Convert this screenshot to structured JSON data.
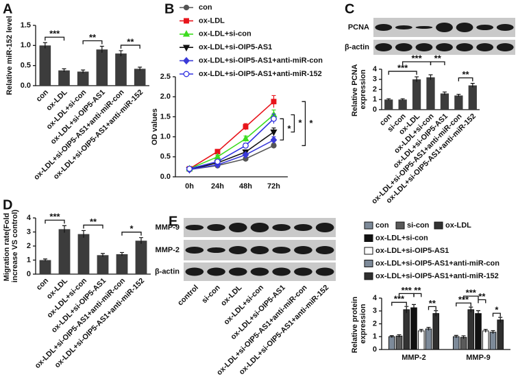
{
  "chart_data": [
    {
      "panel": "A",
      "type": "bar",
      "y_label": "Relative miR-152 level",
      "categories": [
        "con",
        "ox-LDL",
        "ox-LDL+si-con",
        "ox-LDL+si-OIP5-AS1",
        "ox-LDL+si-OIP5-AS1+anti-miR-con",
        "ox-LDL+si-OIP5-AS1+anti-miR-152"
      ],
      "values": [
        1.0,
        0.38,
        0.35,
        0.9,
        0.8,
        0.42
      ],
      "errors": [
        0.07,
        0.04,
        0.04,
        0.08,
        0.07,
        0.04
      ],
      "color": "#3c3c3c",
      "ylim": [
        0,
        1.5
      ],
      "yticks": [
        {
          "value": 0,
          "label": "0.0"
        },
        0.5,
        {
          "value": 1,
          "label": "1.0"
        },
        1.5
      ],
      "brackets": [
        {
          "between": [
            0,
            1
          ],
          "label": "***"
        },
        {
          "between": [
            2,
            3
          ],
          "label": "**"
        },
        {
          "between": [
            4,
            5
          ],
          "label": "**"
        }
      ]
    },
    {
      "panel": "B",
      "type": "line",
      "y_label": "OD values",
      "categories": [
        "0h",
        "24h",
        "48h",
        "72h"
      ],
      "series": [
        {
          "name": "con",
          "color": "#555555",
          "marker": "circle",
          "values": [
            0.18,
            0.28,
            0.45,
            0.78
          ],
          "errors": [
            0.02,
            0.03,
            0.03,
            0.06
          ]
        },
        {
          "name": "ox-LDL",
          "color": "#e8141b",
          "marker": "square",
          "values": [
            0.2,
            0.63,
            1.25,
            1.88
          ],
          "errors": [
            0.02,
            0.04,
            0.08,
            0.15
          ]
        },
        {
          "name": "ox-LDL+si-con",
          "color": "#3ddc1f",
          "marker": "triangle",
          "values": [
            0.2,
            0.5,
            0.95,
            1.55
          ],
          "errors": [
            0.02,
            0.04,
            0.07,
            0.12
          ]
        },
        {
          "name": "ox-LDL+si-OIP5-AS1",
          "color": "#111111",
          "marker": "triangle-down",
          "values": [
            0.18,
            0.35,
            0.62,
            1.12
          ],
          "errors": [
            0.02,
            0.03,
            0.05,
            0.1
          ]
        },
        {
          "name": "ox-LDL+si-OIP5-AS1+anti-miR-con",
          "color": "#3a3ad8",
          "marker": "diamond",
          "values": [
            0.18,
            0.3,
            0.55,
            0.92
          ],
          "errors": [
            0.02,
            0.03,
            0.04,
            0.08
          ]
        },
        {
          "name": "ox-LDL+si-OIP5-AS1+anti-miR-152",
          "color": "#3030e0",
          "marker": "open-circle",
          "values": [
            0.2,
            0.38,
            0.78,
            1.45
          ],
          "errors": [
            0.02,
            0.03,
            0.06,
            0.12
          ]
        }
      ],
      "ylim": [
        0,
        2.5
      ],
      "yticks": [
        {
          "value": 0,
          "label": "0.0"
        },
        0.5,
        {
          "value": 1,
          "label": "1.0"
        },
        1.5,
        {
          "value": 2,
          "label": "2.0"
        },
        2.5
      ],
      "brackets": [
        {
          "between": [
            4,
            5
          ],
          "label": "*"
        },
        {
          "between": [
            2,
            3
          ],
          "label": "*"
        },
        {
          "between": [
            0,
            1
          ],
          "label": "*"
        }
      ]
    },
    {
      "panel": "C",
      "type": "bar",
      "y_label": "Relative PCNA expression",
      "blot_labels": [
        "PCNA",
        "β-actin"
      ],
      "categories": [
        "con",
        "si-con",
        "ox-LDL",
        "ox-LDL+si-con",
        "ox-LDL+si-OIP5-AS1",
        "ox-LDL+si-OIP5-AS1+anti-miR-con",
        "ox-LDL+si-OIP5-AS1+anti-miR-152"
      ],
      "values": [
        1.0,
        1.0,
        3.0,
        3.2,
        1.6,
        1.4,
        2.4
      ],
      "errors": [
        0.08,
        0.08,
        0.25,
        0.25,
        0.15,
        0.12,
        0.2
      ],
      "color": "#3c3c3c",
      "ylim": [
        0,
        4
      ],
      "yticks": [
        0,
        1,
        2,
        3,
        4
      ],
      "brackets": [
        {
          "between": [
            0,
            2
          ],
          "label": "***"
        },
        {
          "between": [
            1,
            3
          ],
          "label": "***"
        },
        {
          "between": [
            3,
            4
          ],
          "label": "**"
        },
        {
          "between": [
            5,
            6
          ],
          "label": "**"
        }
      ]
    },
    {
      "panel": "D",
      "type": "bar",
      "y_label": "Migration rate(Fold increase VS control)",
      "categories": [
        "con",
        "ox-LDL",
        "ox-LDL+si-con",
        "ox-LDL+si-OIP5-AS1",
        "ox-LDL+si-OIP5-AS1+anti-miR-con",
        "ox-LDL+si-OIP5-AS1+anti-miR-152"
      ],
      "values": [
        1.0,
        3.2,
        2.85,
        1.35,
        1.42,
        2.38
      ],
      "errors": [
        0.08,
        0.25,
        0.25,
        0.12,
        0.12,
        0.22
      ],
      "color": "#3c3c3c",
      "ylim": [
        0,
        4
      ],
      "yticks": [
        0,
        1,
        2,
        3,
        4
      ],
      "brackets": [
        {
          "between": [
            0,
            1
          ],
          "label": "***"
        },
        {
          "between": [
            2,
            3
          ],
          "label": "**"
        },
        {
          "between": [
            4,
            5
          ],
          "label": "*"
        }
      ]
    },
    {
      "panel": "E",
      "type": "bar",
      "y_label": "Relative protein expression",
      "blot_labels": [
        "MMP-9",
        "MMP-2",
        "β-actin"
      ],
      "lanes": [
        "control",
        "si-con",
        "ox-LDL",
        "ox-LDL+si-con",
        "ox-LDL+si-OIP5-AS1",
        "ox-LDL+si-OIP5-AS1+anti-miR-con",
        "ox-LDL+si-OIP5-AS1+anti-miR-152"
      ],
      "categories": [
        "MMP-2",
        "MMP-9"
      ],
      "series": [
        {
          "name": "con",
          "color": "#7d8a99",
          "values": [
            1.0,
            1.0
          ],
          "errors": [
            0.08,
            0.1
          ]
        },
        {
          "name": "si-con",
          "color": "#5a5a5a",
          "values": [
            1.05,
            0.95
          ],
          "errors": [
            0.1,
            0.12
          ]
        },
        {
          "name": "ox-LDL",
          "color": "#333333",
          "values": [
            3.1,
            3.1
          ],
          "errors": [
            0.25,
            0.2
          ]
        },
        {
          "name": "ox-LDL+si-con",
          "color": "#111111",
          "values": [
            3.25,
            2.8
          ],
          "errors": [
            0.25,
            0.22
          ]
        },
        {
          "name": "ox-LDL+si-OIP5-AS1",
          "color": "#ffffff",
          "values": [
            1.45,
            1.45
          ],
          "errors": [
            0.12,
            0.12
          ]
        },
        {
          "name": "ox-LDL+si-OIP5-AS1+anti-miR-con",
          "color": "#7d8a99",
          "values": [
            1.6,
            1.35
          ],
          "errors": [
            0.12,
            0.12
          ]
        },
        {
          "name": "ox-LDL+si-OIP5-AS1+anti-miR-152",
          "color": "#2f2f2f",
          "values": [
            2.8,
            2.3
          ],
          "errors": [
            0.22,
            0.2
          ]
        }
      ],
      "ylim": [
        0,
        4
      ],
      "yticks": [
        0,
        1,
        2,
        3,
        4
      ],
      "brackets": [
        {
          "category": 0,
          "between": [
            0,
            2
          ],
          "label": "***"
        },
        {
          "category": 0,
          "between": [
            1,
            3
          ],
          "label": "***"
        },
        {
          "category": 0,
          "between": [
            3,
            4
          ],
          "label": "**"
        },
        {
          "category": 0,
          "between": [
            5,
            6
          ],
          "label": "**"
        },
        {
          "category": 1,
          "between": [
            0,
            2
          ],
          "label": "***"
        },
        {
          "category": 1,
          "between": [
            1,
            3
          ],
          "label": "***"
        },
        {
          "category": 1,
          "between": [
            3,
            4
          ],
          "label": "**"
        },
        {
          "category": 1,
          "between": [
            5,
            6
          ],
          "label": "*"
        }
      ]
    }
  ]
}
